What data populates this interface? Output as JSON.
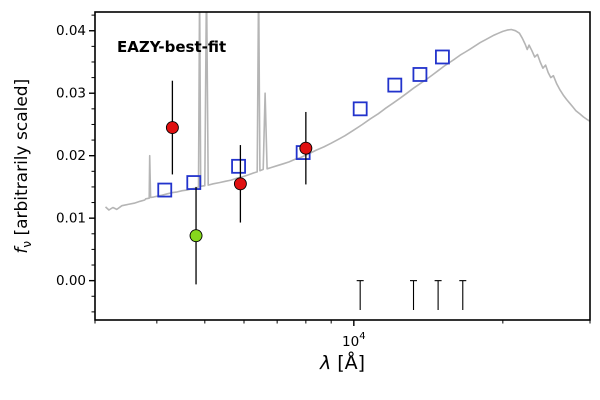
{
  "figure": {
    "background": "#ffffff",
    "annotation": {
      "text": "EAZY-best-fit",
      "color": "#ee1111"
    }
  },
  "labels": {
    "ylabel_f": "f",
    "ylabel_sub": "ν",
    "ylabel_rest": " [arbitrarily scaled]",
    "xlabel_lambda": "λ",
    "xlabel_rest": " [Å]"
  },
  "chart_data": {
    "type": "line",
    "title": "",
    "xlabel": "λ [Å]",
    "ylabel": "f_ν [arbitrarily scaled]",
    "x_scale": "log",
    "xlim": [
      3000,
      30000
    ],
    "ylim": [
      -0.0063,
      0.043
    ],
    "grid": false,
    "legend": "none",
    "xticks": {
      "major": [
        {
          "value": 10000,
          "base": "10",
          "exp": "4"
        }
      ],
      "minor": [
        3000,
        4000,
        5000,
        6000,
        7000,
        8000,
        9000,
        20000,
        30000
      ]
    },
    "yticks": {
      "major": [
        0,
        0.01,
        0.02,
        0.03,
        0.04
      ],
      "minor_step": 0.0025
    },
    "series": [
      {
        "name": "eazy-template",
        "type": "line",
        "color": "#b5b5b5",
        "width": 1.6,
        "points": [
          [
            3150,
            0.0118
          ],
          [
            3200,
            0.0113
          ],
          [
            3260,
            0.0117
          ],
          [
            3320,
            0.0114
          ],
          [
            3400,
            0.012
          ],
          [
            3500,
            0.0122
          ],
          [
            3600,
            0.0124
          ],
          [
            3700,
            0.0127
          ],
          [
            3780,
            0.0129
          ],
          [
            3800,
            0.0131
          ],
          [
            3860,
            0.0132
          ],
          [
            3870,
            0.02
          ],
          [
            3885,
            0.0133
          ],
          [
            3950,
            0.0134
          ],
          [
            4000,
            0.0135
          ],
          [
            4100,
            0.0137
          ],
          [
            4200,
            0.0139
          ],
          [
            4300,
            0.0141
          ],
          [
            4400,
            0.0142
          ],
          [
            4500,
            0.0144
          ],
          [
            4600,
            0.0145
          ],
          [
            4700,
            0.0147
          ],
          [
            4800,
            0.0148
          ],
          [
            4855,
            0.015
          ],
          [
            4880,
            0.047
          ],
          [
            4905,
            0.0151
          ],
          [
            5000,
            0.0152
          ],
          [
            5040,
            0.048
          ],
          [
            5080,
            0.0153
          ],
          [
            5200,
            0.0155
          ],
          [
            5350,
            0.0157
          ],
          [
            5500,
            0.0159
          ],
          [
            5650,
            0.0161
          ],
          [
            5800,
            0.0164
          ],
          [
            5950,
            0.0166
          ],
          [
            6100,
            0.0169
          ],
          [
            6250,
            0.0172
          ],
          [
            6380,
            0.0174
          ],
          [
            6420,
            0.048
          ],
          [
            6460,
            0.0176
          ],
          [
            6560,
            0.0178
          ],
          [
            6620,
            0.03
          ],
          [
            6680,
            0.0179
          ],
          [
            6800,
            0.0181
          ],
          [
            7000,
            0.0184
          ],
          [
            7200,
            0.0187
          ],
          [
            7400,
            0.019
          ],
          [
            7600,
            0.0194
          ],
          [
            7800,
            0.0197
          ],
          [
            8000,
            0.0201
          ],
          [
            8200,
            0.0205
          ],
          [
            8400,
            0.0209
          ],
          [
            8700,
            0.0214
          ],
          [
            9000,
            0.022
          ],
          [
            9300,
            0.0226
          ],
          [
            9600,
            0.0232
          ],
          [
            10000,
            0.0241
          ],
          [
            10400,
            0.025
          ],
          [
            10800,
            0.0259
          ],
          [
            11200,
            0.0267
          ],
          [
            11600,
            0.0276
          ],
          [
            12000,
            0.0284
          ],
          [
            12400,
            0.0292
          ],
          [
            12800,
            0.03
          ],
          [
            13200,
            0.0308
          ],
          [
            13600,
            0.0315
          ],
          [
            14000,
            0.0322
          ],
          [
            14400,
            0.0329
          ],
          [
            14800,
            0.0336
          ],
          [
            15200,
            0.0343
          ],
          [
            15600,
            0.0349
          ],
          [
            16000,
            0.0355
          ],
          [
            16400,
            0.0361
          ],
          [
            16800,
            0.0366
          ],
          [
            17200,
            0.0371
          ],
          [
            17600,
            0.0376
          ],
          [
            18000,
            0.0381
          ],
          [
            18400,
            0.0385
          ],
          [
            18800,
            0.0389
          ],
          [
            19200,
            0.0393
          ],
          [
            19600,
            0.0396
          ],
          [
            20000,
            0.0399
          ],
          [
            20400,
            0.0401
          ],
          [
            20800,
            0.0402
          ],
          [
            21200,
            0.04
          ],
          [
            21600,
            0.0396
          ],
          [
            21900,
            0.0388
          ],
          [
            22200,
            0.0378
          ],
          [
            22400,
            0.037
          ],
          [
            22600,
            0.0377
          ],
          [
            22900,
            0.0368
          ],
          [
            23200,
            0.0358
          ],
          [
            23500,
            0.0362
          ],
          [
            23800,
            0.035
          ],
          [
            24100,
            0.034
          ],
          [
            24400,
            0.0345
          ],
          [
            24700,
            0.0333
          ],
          [
            25000,
            0.0325
          ],
          [
            25300,
            0.0328
          ],
          [
            25700,
            0.0315
          ],
          [
            26100,
            0.0305
          ],
          [
            26500,
            0.0297
          ],
          [
            26900,
            0.029
          ],
          [
            27300,
            0.0284
          ],
          [
            27700,
            0.0278
          ],
          [
            28100,
            0.0272
          ],
          [
            28600,
            0.0267
          ],
          [
            29100,
            0.0262
          ],
          [
            29600,
            0.0258
          ],
          [
            30000,
            0.0255
          ]
        ]
      },
      {
        "name": "model-photometry",
        "type": "scatter",
        "marker": "open-square",
        "color": "#2233cc",
        "size": 13,
        "points": [
          [
            4150,
            0.0145
          ],
          [
            4750,
            0.0157
          ],
          [
            5850,
            0.0183
          ],
          [
            7900,
            0.0205
          ],
          [
            10300,
            0.0275
          ],
          [
            12100,
            0.0313
          ],
          [
            13600,
            0.033
          ],
          [
            15100,
            0.0358
          ]
        ]
      },
      {
        "name": "observed-photometry",
        "type": "scatter",
        "marker": "circle",
        "color": "#e01010",
        "edge": "#000000",
        "radius": 6,
        "points": [
          {
            "x": 4300,
            "y": 0.0245,
            "err": 0.0075
          },
          {
            "x": 5900,
            "y": 0.0155,
            "err": 0.0062
          },
          {
            "x": 8000,
            "y": 0.0212,
            "err": 0.0058
          }
        ]
      },
      {
        "name": "flagged-photometry",
        "type": "scatter",
        "marker": "circle",
        "color": "#86d81c",
        "edge": "#000000",
        "radius": 6,
        "points": [
          {
            "x": 4800,
            "y": 0.0072,
            "err": 0.0078
          }
        ]
      }
    ],
    "zero_limit_markers": {
      "color": "#000000",
      "x": [
        10300,
        13200,
        14800,
        16600
      ],
      "top": 0,
      "drop": 0.0047
    }
  }
}
